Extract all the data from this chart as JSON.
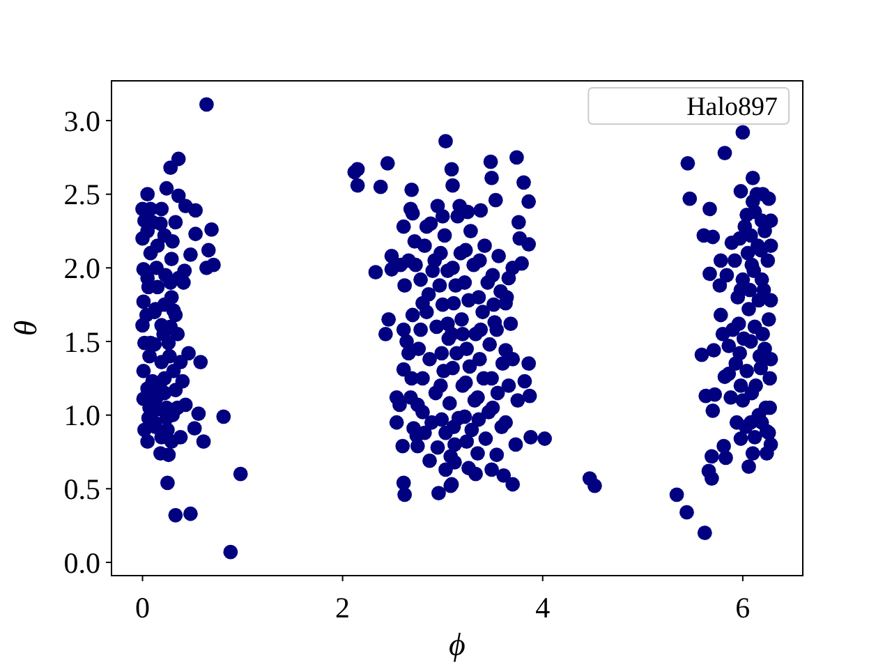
{
  "chart_data": {
    "type": "scatter",
    "xlabel": "ϕ",
    "ylabel": "θ",
    "xlim": [
      -0.31,
      6.6
    ],
    "ylim": [
      -0.09,
      3.27
    ],
    "xticks": [
      0,
      2,
      4,
      6
    ],
    "yticks": [
      {
        "value": 0,
        "label": "0.0"
      },
      0.5,
      {
        "value": 1,
        "label": "1.0"
      },
      1.5,
      {
        "value": 2,
        "label": "2.0"
      },
      2.5,
      {
        "value": 3,
        "label": "3.0"
      }
    ],
    "legend": "top right",
    "marker": "circle",
    "series": [
      {
        "name": "Halo897",
        "color": "#000080",
        "x": [
          0.64,
          0.36,
          0.28,
          0.98,
          0.25,
          0.33,
          0.48,
          0.88,
          0.81,
          0.61,
          0.58,
          0.69,
          0.53,
          0.66,
          0.71,
          0.64,
          0.53,
          0.05,
          0.24,
          0.36,
          0.02,
          0.48,
          0.42,
          0.41,
          0.31,
          0.35,
          0.46,
          0.56,
          0.52,
          0.38,
          0.26,
          0.18,
          0.05,
          0.02,
          0.01,
          0.01,
          0.0,
          0.02,
          0.01,
          0.01,
          0.15,
          0.15,
          0.19,
          0.19,
          0.17,
          0.15,
          0.29,
          0.29,
          0.26,
          0.31,
          0.33,
          0.4,
          0.43,
          0.24,
          0.1,
          0.33,
          0.43,
          0.19,
          0.08,
          0.1,
          0.05,
          0.36,
          0.33,
          0.38,
          0.19,
          0.29,
          0.0,
          0.0,
          0.08,
          0.12,
          0.22,
          0.07,
          0.22,
          0.3,
          0.12,
          0.05,
          0.06,
          0.04,
          0.07,
          0.05,
          0.06,
          0.14,
          0.13,
          0.12,
          0.14,
          0.13,
          0.22,
          0.23,
          0.21,
          0.22,
          0.24,
          0.3,
          0.28,
          0.35,
          0.27,
          0.25,
          0.08,
          0.18,
          0.28,
          3.03,
          2.45,
          2.15,
          2.12,
          2.15,
          2.38,
          2.69,
          3.09,
          3.1,
          2.68,
          2.7,
          2.95,
          2.61,
          2.49,
          2.33,
          2.49,
          2.46,
          2.43,
          2.61,
          2.66,
          2.61,
          2.54,
          2.57,
          2.54,
          2.71,
          2.6,
          2.75,
          2.87,
          2.61,
          2.62,
          2.96,
          3.09,
          3.03,
          2.75,
          2.8,
          2.73,
          2.84,
          3.48,
          3.74,
          3.49,
          3.81,
          3.53,
          3.86,
          3.76,
          3.77,
          3.86,
          3.79,
          3.66,
          3.63,
          3.52,
          3.63,
          3.7,
          3.86,
          3.82,
          3.87,
          3.75,
          3.63,
          3.88,
          4.02,
          3.73,
          3.54,
          3.49,
          3.61,
          3.7,
          3.33,
          3.26,
          3.08,
          4.47,
          4.52,
          3.12,
          3.38,
          3.17,
          2.72,
          2.78,
          2.7,
          2.76,
          2.69,
          2.8,
          2.74,
          2.88,
          2.92,
          2.86,
          2.94,
          2.87,
          2.93,
          2.89,
          2.95,
          3.02,
          3.05,
          3.0,
          3.06,
          3.01,
          3.07,
          3.03,
          3.08,
          3.15,
          3.18,
          3.13,
          3.19,
          3.14,
          3.2,
          3.16,
          3.12,
          3.28,
          3.31,
          3.26,
          3.33,
          3.27,
          3.32,
          3.29,
          3.35,
          3.42,
          3.45,
          3.4,
          3.47,
          3.41,
          3.46,
          3.43,
          3.56,
          3.58,
          3.54,
          3.6,
          3.55,
          3.59,
          2.62,
          2.64,
          2.58,
          3.68,
          3.7,
          3.66,
          2.66,
          2.68,
          2.82,
          2.84,
          2.8,
          2.82,
          2.98,
          2.97,
          2.99,
          2.98,
          2.99,
          3.1,
          3.11,
          3.09,
          3.1,
          3.11,
          3.23,
          3.22,
          3.24,
          3.23,
          3.22,
          3.24,
          3.37,
          3.36,
          3.38,
          3.37,
          3.36,
          3.5,
          3.51,
          3.49,
          3.5,
          3.64,
          2.9,
          3.05,
          3.2,
          3.35,
          3.0,
          3.25,
          2.78,
          5.82,
          5.45,
          5.47,
          5.67,
          6.1,
          5.98,
          6.14,
          6.26,
          6.04,
          6.28,
          5.61,
          5.7,
          5.89,
          5.67,
          5.77,
          5.78,
          5.59,
          5.71,
          5.86,
          5.82,
          5.63,
          5.72,
          5.7,
          5.81,
          5.83,
          5.69,
          5.66,
          5.69,
          5.34,
          5.44,
          5.62,
          6.06,
          6.1,
          6.24,
          5.98,
          6.24,
          6.0,
          5.92,
          5.95,
          5.9,
          5.93,
          5.88,
          5.94,
          6.02,
          6.05,
          6.0,
          6.06,
          6.01,
          6.04,
          6.0,
          6.03,
          6.12,
          6.15,
          6.11,
          6.16,
          6.12,
          6.17,
          6.13,
          6.16,
          6.12,
          6.22,
          6.25,
          6.21,
          6.26,
          6.22,
          6.27,
          6.23,
          6.26,
          5.8,
          5.84,
          5.86,
          5.78,
          5.97,
          5.98,
          5.96,
          5.97,
          5.98,
          6.08,
          6.09,
          6.07,
          6.08,
          6.09,
          6.08,
          6.19,
          6.18,
          6.19,
          6.2,
          6.18,
          6.19,
          6.28,
          6.28,
          6.28,
          6.27,
          6.28,
          6.1,
          6.2
        ],
        "values": [
          3.11,
          2.74,
          2.68,
          0.6,
          0.54,
          0.32,
          0.33,
          0.07,
          0.99,
          0.82,
          1.36,
          2.26,
          2.23,
          2.12,
          2.02,
          2.0,
          2.39,
          2.5,
          2.54,
          2.49,
          2.32,
          2.09,
          1.98,
          1.9,
          1.71,
          1.55,
          1.42,
          1.01,
          0.91,
          0.85,
          0.73,
          0.74,
          0.82,
          0.9,
          1.99,
          1.77,
          1.61,
          1.49,
          1.3,
          1.11,
          2.15,
          1.87,
          1.61,
          1.36,
          1.2,
          1.04,
          2.06,
          1.8,
          1.49,
          1.3,
          1.17,
          1.23,
          1.07,
          0.98,
          2.31,
          2.31,
          2.42,
          2.4,
          1.49,
          1.23,
          1.93,
          1.93,
          1.68,
          1.36,
          0.85,
          0.82,
          2.4,
          2.2,
          2.1,
          1.7,
          1.75,
          1.05,
          1.15,
          1.0,
          0.95,
          2.25,
          1.87,
          1.68,
          1.4,
          1.18,
          0.98,
          2.0,
          1.72,
          1.48,
          1.12,
          0.92,
          2.22,
          1.95,
          1.55,
          1.25,
          1.05,
          2.18,
          1.6,
          1.05,
          1.4,
          0.9,
          2.4,
          2.3,
          1.9,
          2.86,
          2.71,
          2.67,
          2.65,
          2.56,
          2.55,
          2.53,
          2.67,
          2.56,
          2.4,
          2.37,
          2.42,
          2.28,
          2.08,
          1.97,
          1.99,
          1.65,
          1.55,
          1.58,
          1.42,
          1.31,
          1.12,
          1.07,
          0.95,
          0.91,
          0.79,
          0.79,
          0.69,
          0.54,
          0.46,
          0.47,
          0.53,
          0.63,
          1.07,
          1.76,
          2.02,
          2.28,
          2.72,
          2.75,
          2.61,
          2.58,
          2.46,
          2.45,
          2.31,
          2.2,
          2.16,
          2.03,
          1.93,
          1.76,
          1.63,
          1.44,
          1.38,
          1.35,
          1.23,
          1.13,
          1.1,
          0.95,
          0.85,
          0.84,
          0.8,
          0.73,
          0.63,
          0.59,
          0.53,
          0.6,
          0.64,
          0.52,
          0.57,
          0.52,
          0.68,
          2.39,
          2.42,
          2.18,
          1.92,
          1.68,
          1.45,
          1.25,
          1.02,
          0.86,
          2.3,
          2.05,
          1.82,
          1.6,
          1.38,
          1.15,
          0.95,
          0.78,
          2.22,
          1.98,
          1.75,
          1.52,
          1.3,
          1.08,
          0.88,
          0.72,
          2.35,
          2.1,
          1.88,
          1.65,
          1.42,
          1.2,
          0.98,
          0.8,
          2.25,
          2.02,
          1.78,
          1.55,
          1.33,
          1.1,
          0.9,
          0.74,
          2.15,
          1.9,
          1.7,
          1.48,
          1.25,
          1.02,
          0.84,
          2.08,
          1.84,
          1.58,
          1.35,
          1.15,
          0.92,
          1.88,
          1.5,
          2.02,
          1.62,
          2.0,
          1.2,
          2.05,
          1.12,
          2.15,
          1.7,
          1.25,
          0.88,
          2.1,
          1.88,
          1.42,
          1.2,
          0.97,
          2.0,
          1.76,
          1.55,
          1.32,
          0.92,
          2.12,
          1.9,
          1.45,
          1.22,
          0.99,
          0.82,
          2.05,
          1.8,
          1.58,
          1.38,
          0.97,
          1.95,
          1.75,
          1.25,
          1.05,
          1.8,
          1.98,
          1.62,
          1.55,
          1.12,
          2.35,
          2.38,
          1.58,
          2.78,
          2.71,
          2.47,
          2.4,
          2.61,
          2.52,
          2.5,
          2.47,
          2.36,
          2.32,
          2.22,
          2.21,
          2.17,
          1.96,
          1.88,
          1.68,
          1.41,
          1.44,
          1.47,
          1.26,
          1.13,
          1.14,
          1.03,
          0.79,
          0.71,
          0.72,
          0.62,
          0.57,
          0.46,
          0.34,
          0.2,
          0.65,
          0.74,
          0.74,
          0.84,
          0.89,
          2.92,
          2.05,
          1.8,
          1.58,
          1.35,
          1.12,
          0.95,
          2.28,
          2.1,
          1.92,
          1.72,
          1.52,
          1.3,
          1.1,
          0.92,
          2.38,
          2.15,
          1.98,
          1.78,
          1.6,
          1.4,
          1.2,
          1.0,
          0.85,
          2.25,
          2.05,
          1.85,
          1.65,
          1.45,
          1.25,
          1.05,
          0.88,
          1.55,
          1.95,
          1.28,
          2.05,
          2.2,
          1.85,
          1.62,
          1.42,
          1.2,
          2.22,
          2.02,
          1.85,
          1.5,
          1.15,
          0.95,
          2.32,
          2.12,
          1.92,
          1.55,
          1.32,
          0.95,
          2.15,
          1.78,
          1.38,
          1.05,
          0.8,
          2.45,
          2.5
        ]
      }
    ]
  }
}
